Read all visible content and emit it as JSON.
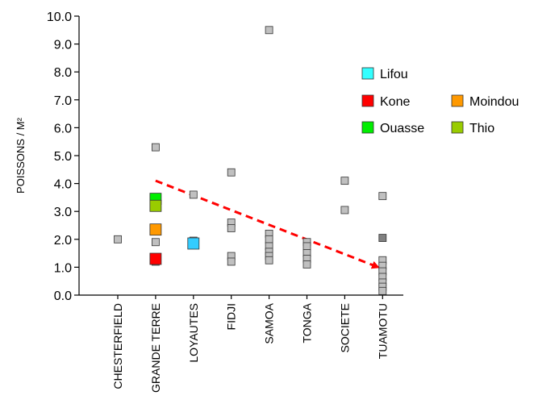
{
  "chart_data": {
    "type": "scatter",
    "title": "",
    "xlabel": "",
    "ylabel": "POISSONS / M²",
    "ylim": [
      0,
      10
    ],
    "yticks": [
      "0.0",
      "1.0",
      "2.0",
      "3.0",
      "4.0",
      "5.0",
      "6.0",
      "7.0",
      "8.0",
      "9.0",
      "10.0"
    ],
    "grid": false,
    "legend_position": "right",
    "categories": [
      "CHESTERFIELD",
      "GRANDE TERRE",
      "LOYAUTES",
      "FIDJI",
      "SAMOA",
      "TONGA",
      "SOCIETE",
      "TUAMOTU"
    ],
    "series": [
      {
        "color": "#c0c0c0",
        "points": [
          {
            "x": "CHESTERFIELD",
            "y": 2.0
          },
          {
            "x": "GRANDE TERRE",
            "y": 5.3
          },
          {
            "x": "GRANDE TERRE",
            "y": 1.9
          },
          {
            "x": "GRANDE TERRE",
            "y": 1.2
          },
          {
            "x": "LOYAUTES",
            "y": 3.6
          },
          {
            "x": "LOYAUTES",
            "y": 1.95
          },
          {
            "x": "FIDJI",
            "y": 4.4
          },
          {
            "x": "FIDJI",
            "y": 2.6
          },
          {
            "x": "FIDJI",
            "y": 2.4
          },
          {
            "x": "FIDJI",
            "y": 1.4
          },
          {
            "x": "FIDJI",
            "y": 1.2
          },
          {
            "x": "SAMOA",
            "y": 9.5
          },
          {
            "x": "SAMOA",
            "y": 2.2
          },
          {
            "x": "SAMOA",
            "y": 2.0
          },
          {
            "x": "SAMOA",
            "y": 1.75
          },
          {
            "x": "SAMOA",
            "y": 1.55
          },
          {
            "x": "SAMOA",
            "y": 1.4
          },
          {
            "x": "SAMOA",
            "y": 1.25
          },
          {
            "x": "TONGA",
            "y": 1.9
          },
          {
            "x": "TONGA",
            "y": 1.75
          },
          {
            "x": "TONGA",
            "y": 1.5
          },
          {
            "x": "TONGA",
            "y": 1.3
          },
          {
            "x": "TONGA",
            "y": 1.1
          },
          {
            "x": "SOCIETE",
            "y": 4.1
          },
          {
            "x": "SOCIETE",
            "y": 3.05
          },
          {
            "x": "TUAMOTU",
            "y": 3.55
          },
          {
            "x": "TUAMOTU",
            "y": 1.25
          },
          {
            "x": "TUAMOTU",
            "y": 1.05
          },
          {
            "x": "TUAMOTU",
            "y": 0.85
          },
          {
            "x": "TUAMOTU",
            "y": 0.65
          },
          {
            "x": "TUAMOTU",
            "y": 0.45
          },
          {
            "x": "TUAMOTU",
            "y": 0.3
          },
          {
            "x": "TUAMOTU",
            "y": 0.15
          }
        ]
      },
      {
        "color": "#808080",
        "points": [
          {
            "x": "TUAMOTU",
            "y": 2.05
          }
        ]
      },
      {
        "name": "Lifou",
        "color": "#33ccff",
        "legend_color": "#33ffff",
        "points": [
          {
            "x": "LOYAUTES",
            "y": 1.85
          }
        ]
      },
      {
        "name": "Kone",
        "color": "#ff0000",
        "points": [
          {
            "x": "GRANDE TERRE",
            "y": 1.3
          }
        ]
      },
      {
        "name": "Moindou",
        "color": "#ff9900",
        "points": [
          {
            "x": "GRANDE TERRE",
            "y": 2.35
          }
        ]
      },
      {
        "name": "Ouasse",
        "color": "#00ee00",
        "points": [
          {
            "x": "GRANDE TERRE",
            "y": 3.45
          }
        ]
      },
      {
        "name": "Thio",
        "color": "#99cc00",
        "points": [
          {
            "x": "GRANDE TERRE",
            "y": 3.2
          }
        ]
      }
    ],
    "legend": [
      "Lifou",
      "Kone",
      "Moindou",
      "Ouasse",
      "Thio"
    ],
    "trend_arrow": {
      "color": "#ff0000",
      "style": "dashed",
      "from": {
        "x": "GRANDE TERRE",
        "y": 4.1
      },
      "to": {
        "x": "TUAMOTU",
        "y": 1.0
      }
    }
  }
}
